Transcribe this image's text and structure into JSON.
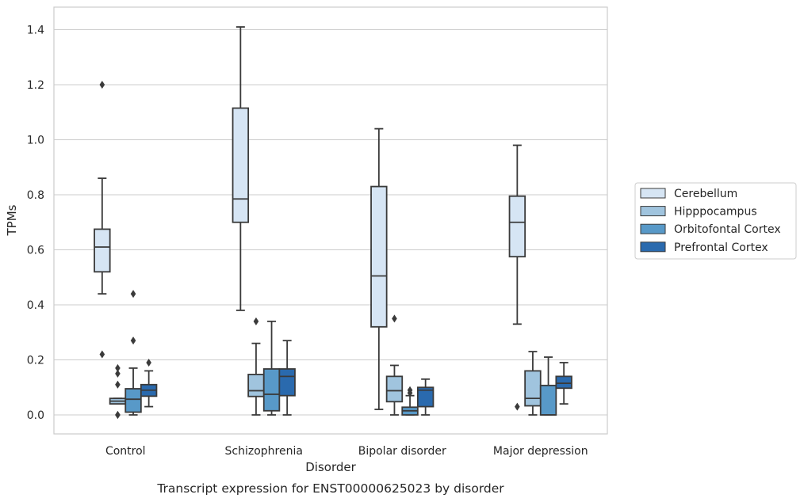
{
  "chart_data": {
    "type": "box",
    "title": "Transcript expression for ENST00000625023 by disorder",
    "xlabel": "Disorder",
    "ylabel": "TPMs",
    "ylim": [
      -0.07,
      1.48
    ],
    "yticks": [
      0.0,
      0.2,
      0.4,
      0.6,
      0.8,
      1.0,
      1.2,
      1.4
    ],
    "ytick_labels": [
      "0.0",
      "0.2",
      "0.4",
      "0.6",
      "0.8",
      "1.0",
      "1.2",
      "1.4"
    ],
    "grid": "horizontal",
    "legend_position": "right",
    "categories": [
      "Control",
      "Schizophrenia",
      "Bipolar disorder",
      "Major depression"
    ],
    "series": [
      {
        "name": "Cerebellum",
        "color": "#d6e5f4",
        "boxes": [
          {
            "q1": 0.52,
            "median": 0.61,
            "q3": 0.675,
            "whisker_low": 0.44,
            "whisker_high": 0.86,
            "outliers": [
              1.2,
              0.22
            ]
          },
          {
            "q1": 0.7,
            "median": 0.785,
            "q3": 1.115,
            "whisker_low": 0.38,
            "whisker_high": 1.41,
            "outliers": []
          },
          {
            "q1": 0.32,
            "median": 0.505,
            "q3": 0.83,
            "whisker_low": 0.02,
            "whisker_high": 1.04,
            "outliers": []
          },
          {
            "q1": 0.575,
            "median": 0.7,
            "q3": 0.795,
            "whisker_low": 0.33,
            "whisker_high": 0.98,
            "outliers": [
              0.03
            ]
          }
        ]
      },
      {
        "name": "Hipppocampus",
        "color": "#a0c4de",
        "boxes": [
          {
            "q1": 0.04,
            "median": 0.05,
            "q3": 0.06,
            "whisker_low": 0.04,
            "whisker_high": 0.06,
            "outliers": [
              0.17,
              0.15,
              0.11,
              0.0,
              0.0
            ]
          },
          {
            "q1": 0.067,
            "median": 0.088,
            "q3": 0.147,
            "whisker_low": 0.0,
            "whisker_high": 0.26,
            "outliers": [
              0.34
            ]
          },
          {
            "q1": 0.048,
            "median": 0.088,
            "q3": 0.14,
            "whisker_low": 0.0,
            "whisker_high": 0.18,
            "outliers": [
              0.35
            ]
          },
          {
            "q1": 0.033,
            "median": 0.06,
            "q3": 0.16,
            "whisker_low": 0.0,
            "whisker_high": 0.23,
            "outliers": []
          }
        ]
      },
      {
        "name": "Orbitofontal Cortex",
        "color": "#5899c8",
        "boxes": [
          {
            "q1": 0.01,
            "median": 0.057,
            "q3": 0.095,
            "whisker_low": 0.0,
            "whisker_high": 0.17,
            "outliers": [
              0.44,
              0.27
            ]
          },
          {
            "q1": 0.015,
            "median": 0.075,
            "q3": 0.167,
            "whisker_low": 0.0,
            "whisker_high": 0.34,
            "outliers": []
          },
          {
            "q1": 0.0,
            "median": 0.015,
            "q3": 0.028,
            "whisker_low": 0.0,
            "whisker_high": 0.07,
            "outliers": [
              0.09,
              0.08
            ]
          },
          {
            "q1": 0.0,
            "median": 0.0,
            "q3": 0.107,
            "whisker_low": 0.0,
            "whisker_high": 0.21,
            "outliers": []
          }
        ]
      },
      {
        "name": "Prefrontal Cortex",
        "color": "#2a6aae",
        "boxes": [
          {
            "q1": 0.068,
            "median": 0.09,
            "q3": 0.11,
            "whisker_low": 0.03,
            "whisker_high": 0.16,
            "outliers": [
              0.19
            ]
          },
          {
            "q1": 0.07,
            "median": 0.14,
            "q3": 0.167,
            "whisker_low": 0.0,
            "whisker_high": 0.27,
            "outliers": []
          },
          {
            "q1": 0.03,
            "median": 0.09,
            "q3": 0.1,
            "whisker_low": 0.0,
            "whisker_high": 0.13,
            "outliers": []
          },
          {
            "q1": 0.097,
            "median": 0.115,
            "q3": 0.14,
            "whisker_low": 0.04,
            "whisker_high": 0.19,
            "outliers": []
          }
        ]
      }
    ]
  }
}
